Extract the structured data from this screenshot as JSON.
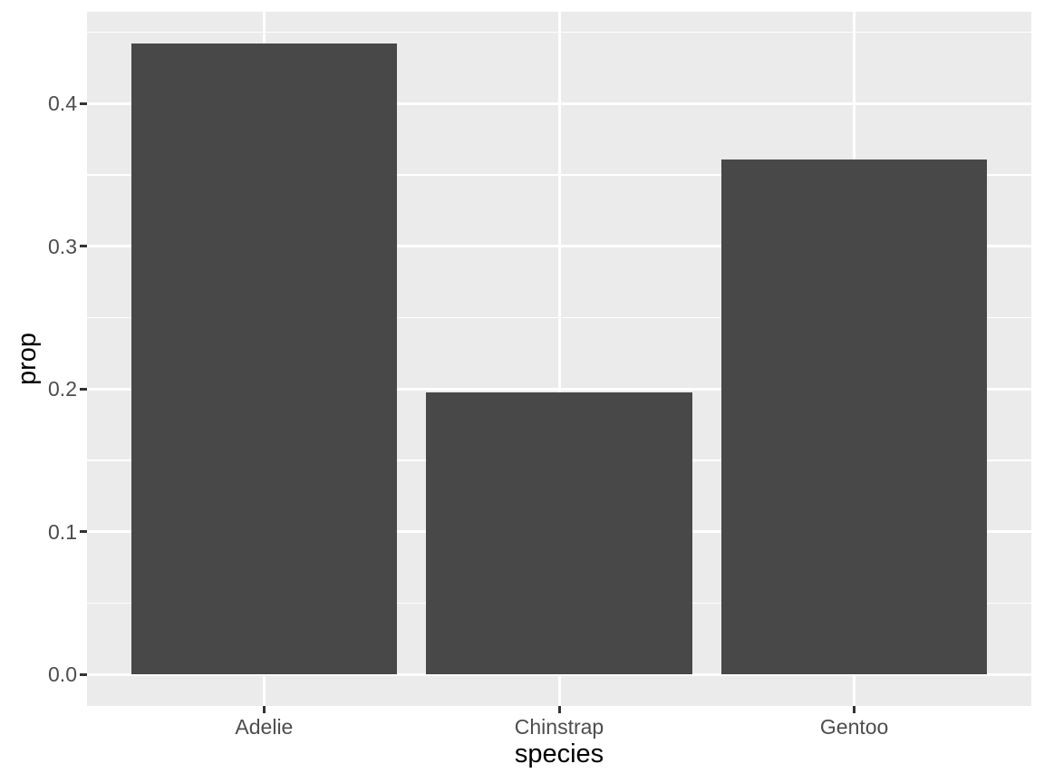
{
  "chart_data": {
    "type": "bar",
    "title": "",
    "xlabel": "species",
    "ylabel": "prop",
    "categories": [
      "Adelie",
      "Chinstrap",
      "Gentoo"
    ],
    "values": [
      0.4419,
      0.1977,
      0.3605
    ],
    "y_major_ticks": [
      0.0,
      0.1,
      0.2,
      0.3,
      0.4
    ],
    "y_tick_labels": [
      "0.0",
      "0.1",
      "0.2",
      "0.3",
      "0.4"
    ],
    "y_minor_ticks": [
      0.05,
      0.15,
      0.25,
      0.35,
      0.45
    ],
    "ylim": [
      -0.02222,
      0.46413
    ],
    "bar_rel_width": 0.9,
    "grid": true,
    "legend": "none",
    "style": {
      "bar_fill": "#484848",
      "panel_bg": "#EBEBEB",
      "grid_color": "#FFFFFF",
      "tick_color": "#333333",
      "tick_label_color": "#4D4D4D",
      "axis_title_color": "#000000",
      "figure_bg": "#FFFFFF"
    }
  }
}
